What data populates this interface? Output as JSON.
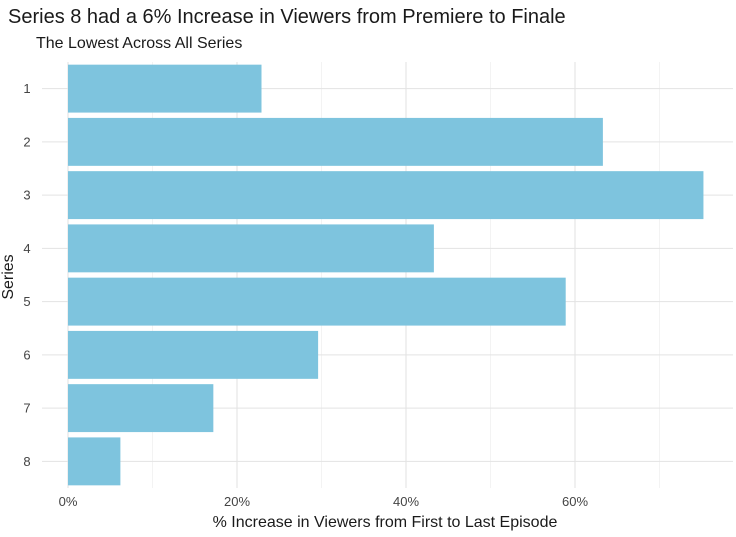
{
  "chart_data": {
    "type": "bar",
    "orientation": "horizontal",
    "title": "Series 8 had a 6% Increase in Viewers from Premiere to Finale",
    "subtitle": "The Lowest Across All Series",
    "xlabel": "% Increase in Viewers from First to Last Episode",
    "ylabel": "Series",
    "categories": [
      "1",
      "2",
      "3",
      "4",
      "5",
      "6",
      "7",
      "8"
    ],
    "values": [
      22.9,
      63.3,
      75.2,
      43.3,
      58.9,
      29.6,
      17.2,
      6.2
    ],
    "xlim": [
      0,
      78
    ],
    "x_ticks": [
      0,
      20,
      40,
      60
    ],
    "x_tick_labels": [
      "0%",
      "20%",
      "40%",
      "60%"
    ],
    "grid": true,
    "legend": "none",
    "bar_color": "#7ec4de"
  }
}
